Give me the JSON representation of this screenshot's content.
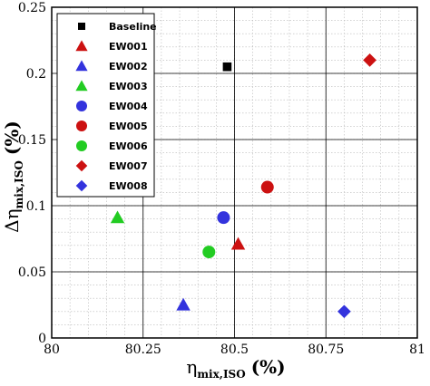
{
  "chart_data": {
    "type": "scatter",
    "xlim": [
      80,
      81
    ],
    "ylim": [
      0,
      0.25
    ],
    "x_ticks": [
      "80",
      "80.25",
      "80.5",
      "80.75",
      "81"
    ],
    "y_ticks": [
      "0",
      "0.05",
      "0.1",
      "0.15",
      "0.2",
      "0.25"
    ],
    "x_tick_values": [
      80,
      80.25,
      80.5,
      80.75,
      81
    ],
    "y_tick_values": [
      0,
      0.05,
      0.1,
      0.15,
      0.2,
      0.25
    ],
    "grid": {
      "major": true,
      "minor": true,
      "minor_x_step": 0.05,
      "minor_y_step": 0.01
    },
    "xlabel": {
      "main": "η",
      "sub": "mix,ISO",
      "unit": "(%)"
    },
    "ylabel": {
      "main": "Δη",
      "sub": "mix,ISO",
      "unit": "(%)"
    },
    "legend_position": "top-left",
    "series": [
      {
        "name": "Baseline",
        "marker": "square",
        "color": "#000000",
        "x": 80.48,
        "y": 0.205
      },
      {
        "name": "EW001",
        "marker": "triangle",
        "color": "#cc1111",
        "x": 80.51,
        "y": 0.071
      },
      {
        "name": "EW002",
        "marker": "triangle",
        "color": "#3333dd",
        "x": 80.36,
        "y": 0.025
      },
      {
        "name": "EW003",
        "marker": "triangle",
        "color": "#22cc22",
        "x": 80.18,
        "y": 0.091
      },
      {
        "name": "EW004",
        "marker": "circle",
        "color": "#3333dd",
        "x": 80.47,
        "y": 0.091
      },
      {
        "name": "EW005",
        "marker": "circle",
        "color": "#cc1111",
        "x": 80.59,
        "y": 0.114
      },
      {
        "name": "EW006",
        "marker": "circle",
        "color": "#22cc22",
        "x": 80.43,
        "y": 0.065
      },
      {
        "name": "EW007",
        "marker": "diamond",
        "color": "#cc1111",
        "x": 80.87,
        "y": 0.21
      },
      {
        "name": "EW008",
        "marker": "diamond",
        "color": "#3333dd",
        "x": 80.8,
        "y": 0.02
      }
    ]
  }
}
